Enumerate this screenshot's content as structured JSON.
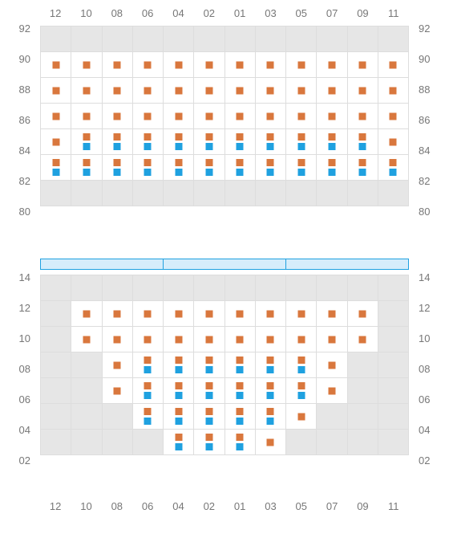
{
  "columns": [
    "12",
    "10",
    "08",
    "06",
    "04",
    "02",
    "01",
    "03",
    "05",
    "07",
    "09",
    "11"
  ],
  "columns_bottom": [
    "12",
    "10",
    "08",
    "06",
    "04",
    "02",
    "01",
    "03",
    "05",
    "07",
    "09",
    "11"
  ],
  "colors": {
    "orange": "#d9773d",
    "blue": "#1fa1e0",
    "grid": "#dddddd",
    "inactive_bg": "#e6e6e6",
    "active_bg": "#ffffff",
    "label": "#777777",
    "divider_fill": "#d6edfb",
    "divider_border": "#1fa1e0"
  },
  "upper": {
    "row_labels": [
      "92",
      "90",
      "88",
      "86",
      "84",
      "82",
      "80"
    ],
    "rows": [
      {
        "cells": [
          {
            "active": false
          },
          {
            "active": false
          },
          {
            "active": false
          },
          {
            "active": false
          },
          {
            "active": false
          },
          {
            "active": false
          },
          {
            "active": false
          },
          {
            "active": false
          },
          {
            "active": false
          },
          {
            "active": false
          },
          {
            "active": false
          },
          {
            "active": false
          }
        ]
      },
      {
        "cells": [
          {
            "active": true,
            "markers": [
              "o"
            ]
          },
          {
            "active": true,
            "markers": [
              "o"
            ]
          },
          {
            "active": true,
            "markers": [
              "o"
            ]
          },
          {
            "active": true,
            "markers": [
              "o"
            ]
          },
          {
            "active": true,
            "markers": [
              "o"
            ]
          },
          {
            "active": true,
            "markers": [
              "o"
            ]
          },
          {
            "active": true,
            "markers": [
              "o"
            ]
          },
          {
            "active": true,
            "markers": [
              "o"
            ]
          },
          {
            "active": true,
            "markers": [
              "o"
            ]
          },
          {
            "active": true,
            "markers": [
              "o"
            ]
          },
          {
            "active": true,
            "markers": [
              "o"
            ]
          },
          {
            "active": true,
            "markers": [
              "o"
            ]
          }
        ]
      },
      {
        "cells": [
          {
            "active": true,
            "markers": [
              "o"
            ]
          },
          {
            "active": true,
            "markers": [
              "o"
            ]
          },
          {
            "active": true,
            "markers": [
              "o"
            ]
          },
          {
            "active": true,
            "markers": [
              "o"
            ]
          },
          {
            "active": true,
            "markers": [
              "o"
            ]
          },
          {
            "active": true,
            "markers": [
              "o"
            ]
          },
          {
            "active": true,
            "markers": [
              "o"
            ]
          },
          {
            "active": true,
            "markers": [
              "o"
            ]
          },
          {
            "active": true,
            "markers": [
              "o"
            ]
          },
          {
            "active": true,
            "markers": [
              "o"
            ]
          },
          {
            "active": true,
            "markers": [
              "o"
            ]
          },
          {
            "active": true,
            "markers": [
              "o"
            ]
          }
        ]
      },
      {
        "cells": [
          {
            "active": true,
            "markers": [
              "o"
            ]
          },
          {
            "active": true,
            "markers": [
              "o"
            ]
          },
          {
            "active": true,
            "markers": [
              "o"
            ]
          },
          {
            "active": true,
            "markers": [
              "o"
            ]
          },
          {
            "active": true,
            "markers": [
              "o"
            ]
          },
          {
            "active": true,
            "markers": [
              "o"
            ]
          },
          {
            "active": true,
            "markers": [
              "o"
            ]
          },
          {
            "active": true,
            "markers": [
              "o"
            ]
          },
          {
            "active": true,
            "markers": [
              "o"
            ]
          },
          {
            "active": true,
            "markers": [
              "o"
            ]
          },
          {
            "active": true,
            "markers": [
              "o"
            ]
          },
          {
            "active": true,
            "markers": [
              "o"
            ]
          }
        ]
      },
      {
        "cells": [
          {
            "active": true,
            "markers": [
              "o"
            ]
          },
          {
            "active": true,
            "markers": [
              "o",
              "b"
            ]
          },
          {
            "active": true,
            "markers": [
              "o",
              "b"
            ]
          },
          {
            "active": true,
            "markers": [
              "o",
              "b"
            ]
          },
          {
            "active": true,
            "markers": [
              "o",
              "b"
            ]
          },
          {
            "active": true,
            "markers": [
              "o",
              "b"
            ]
          },
          {
            "active": true,
            "markers": [
              "o",
              "b"
            ]
          },
          {
            "active": true,
            "markers": [
              "o",
              "b"
            ]
          },
          {
            "active": true,
            "markers": [
              "o",
              "b"
            ]
          },
          {
            "active": true,
            "markers": [
              "o",
              "b"
            ]
          },
          {
            "active": true,
            "markers": [
              "o",
              "b"
            ]
          },
          {
            "active": true,
            "markers": [
              "o"
            ]
          }
        ]
      },
      {
        "cells": [
          {
            "active": true,
            "markers": [
              "o",
              "b"
            ]
          },
          {
            "active": true,
            "markers": [
              "o",
              "b"
            ]
          },
          {
            "active": true,
            "markers": [
              "o",
              "b"
            ]
          },
          {
            "active": true,
            "markers": [
              "o",
              "b"
            ]
          },
          {
            "active": true,
            "markers": [
              "o",
              "b"
            ]
          },
          {
            "active": true,
            "markers": [
              "o",
              "b"
            ]
          },
          {
            "active": true,
            "markers": [
              "o",
              "b"
            ]
          },
          {
            "active": true,
            "markers": [
              "o",
              "b"
            ]
          },
          {
            "active": true,
            "markers": [
              "o",
              "b"
            ]
          },
          {
            "active": true,
            "markers": [
              "o",
              "b"
            ]
          },
          {
            "active": true,
            "markers": [
              "o",
              "b"
            ]
          },
          {
            "active": true,
            "markers": [
              "o",
              "b"
            ]
          }
        ]
      },
      {
        "cells": [
          {
            "active": false
          },
          {
            "active": false
          },
          {
            "active": false
          },
          {
            "active": false
          },
          {
            "active": false
          },
          {
            "active": false
          },
          {
            "active": false
          },
          {
            "active": false
          },
          {
            "active": false
          },
          {
            "active": false
          },
          {
            "active": false
          },
          {
            "active": false
          }
        ]
      }
    ]
  },
  "divider_segments": 3,
  "lower": {
    "row_labels": [
      "14",
      "12",
      "10",
      "08",
      "06",
      "04",
      "02"
    ],
    "rows": [
      {
        "cells": [
          {
            "active": false
          },
          {
            "active": false
          },
          {
            "active": false
          },
          {
            "active": false
          },
          {
            "active": false
          },
          {
            "active": false
          },
          {
            "active": false
          },
          {
            "active": false
          },
          {
            "active": false
          },
          {
            "active": false
          },
          {
            "active": false
          },
          {
            "active": false
          }
        ]
      },
      {
        "cells": [
          {
            "active": false
          },
          {
            "active": true,
            "markers": [
              "o"
            ]
          },
          {
            "active": true,
            "markers": [
              "o"
            ]
          },
          {
            "active": true,
            "markers": [
              "o"
            ]
          },
          {
            "active": true,
            "markers": [
              "o"
            ]
          },
          {
            "active": true,
            "markers": [
              "o"
            ]
          },
          {
            "active": true,
            "markers": [
              "o"
            ]
          },
          {
            "active": true,
            "markers": [
              "o"
            ]
          },
          {
            "active": true,
            "markers": [
              "o"
            ]
          },
          {
            "active": true,
            "markers": [
              "o"
            ]
          },
          {
            "active": true,
            "markers": [
              "o"
            ]
          },
          {
            "active": false
          }
        ]
      },
      {
        "cells": [
          {
            "active": false
          },
          {
            "active": true,
            "markers": [
              "o"
            ]
          },
          {
            "active": true,
            "markers": [
              "o"
            ]
          },
          {
            "active": true,
            "markers": [
              "o"
            ]
          },
          {
            "active": true,
            "markers": [
              "o"
            ]
          },
          {
            "active": true,
            "markers": [
              "o"
            ]
          },
          {
            "active": true,
            "markers": [
              "o"
            ]
          },
          {
            "active": true,
            "markers": [
              "o"
            ]
          },
          {
            "active": true,
            "markers": [
              "o"
            ]
          },
          {
            "active": true,
            "markers": [
              "o"
            ]
          },
          {
            "active": true,
            "markers": [
              "o"
            ]
          },
          {
            "active": false
          }
        ]
      },
      {
        "cells": [
          {
            "active": false
          },
          {
            "active": false
          },
          {
            "active": true,
            "markers": [
              "o"
            ]
          },
          {
            "active": true,
            "markers": [
              "o",
              "b"
            ]
          },
          {
            "active": true,
            "markers": [
              "o",
              "b"
            ]
          },
          {
            "active": true,
            "markers": [
              "o",
              "b"
            ]
          },
          {
            "active": true,
            "markers": [
              "o",
              "b"
            ]
          },
          {
            "active": true,
            "markers": [
              "o",
              "b"
            ]
          },
          {
            "active": true,
            "markers": [
              "o",
              "b"
            ]
          },
          {
            "active": true,
            "markers": [
              "o"
            ]
          },
          {
            "active": false
          },
          {
            "active": false
          }
        ]
      },
      {
        "cells": [
          {
            "active": false
          },
          {
            "active": false
          },
          {
            "active": true,
            "markers": [
              "o"
            ]
          },
          {
            "active": true,
            "markers": [
              "o",
              "b"
            ]
          },
          {
            "active": true,
            "markers": [
              "o",
              "b"
            ]
          },
          {
            "active": true,
            "markers": [
              "o",
              "b"
            ]
          },
          {
            "active": true,
            "markers": [
              "o",
              "b"
            ]
          },
          {
            "active": true,
            "markers": [
              "o",
              "b"
            ]
          },
          {
            "active": true,
            "markers": [
              "o",
              "b"
            ]
          },
          {
            "active": true,
            "markers": [
              "o"
            ]
          },
          {
            "active": false
          },
          {
            "active": false
          }
        ]
      },
      {
        "cells": [
          {
            "active": false
          },
          {
            "active": false
          },
          {
            "active": false
          },
          {
            "active": true,
            "markers": [
              "o",
              "b"
            ]
          },
          {
            "active": true,
            "markers": [
              "o",
              "b"
            ]
          },
          {
            "active": true,
            "markers": [
              "o",
              "b"
            ]
          },
          {
            "active": true,
            "markers": [
              "o",
              "b"
            ]
          },
          {
            "active": true,
            "markers": [
              "o",
              "b"
            ]
          },
          {
            "active": true,
            "markers": [
              "o"
            ]
          },
          {
            "active": false
          },
          {
            "active": false
          },
          {
            "active": false
          }
        ]
      },
      {
        "cells": [
          {
            "active": false
          },
          {
            "active": false
          },
          {
            "active": false
          },
          {
            "active": false
          },
          {
            "active": true,
            "markers": [
              "o",
              "b"
            ]
          },
          {
            "active": true,
            "markers": [
              "o",
              "b"
            ]
          },
          {
            "active": true,
            "markers": [
              "o",
              "b"
            ]
          },
          {
            "active": true,
            "markers": [
              "o"
            ]
          },
          {
            "active": false
          },
          {
            "active": false
          },
          {
            "active": false
          },
          {
            "active": false
          }
        ]
      }
    ]
  }
}
